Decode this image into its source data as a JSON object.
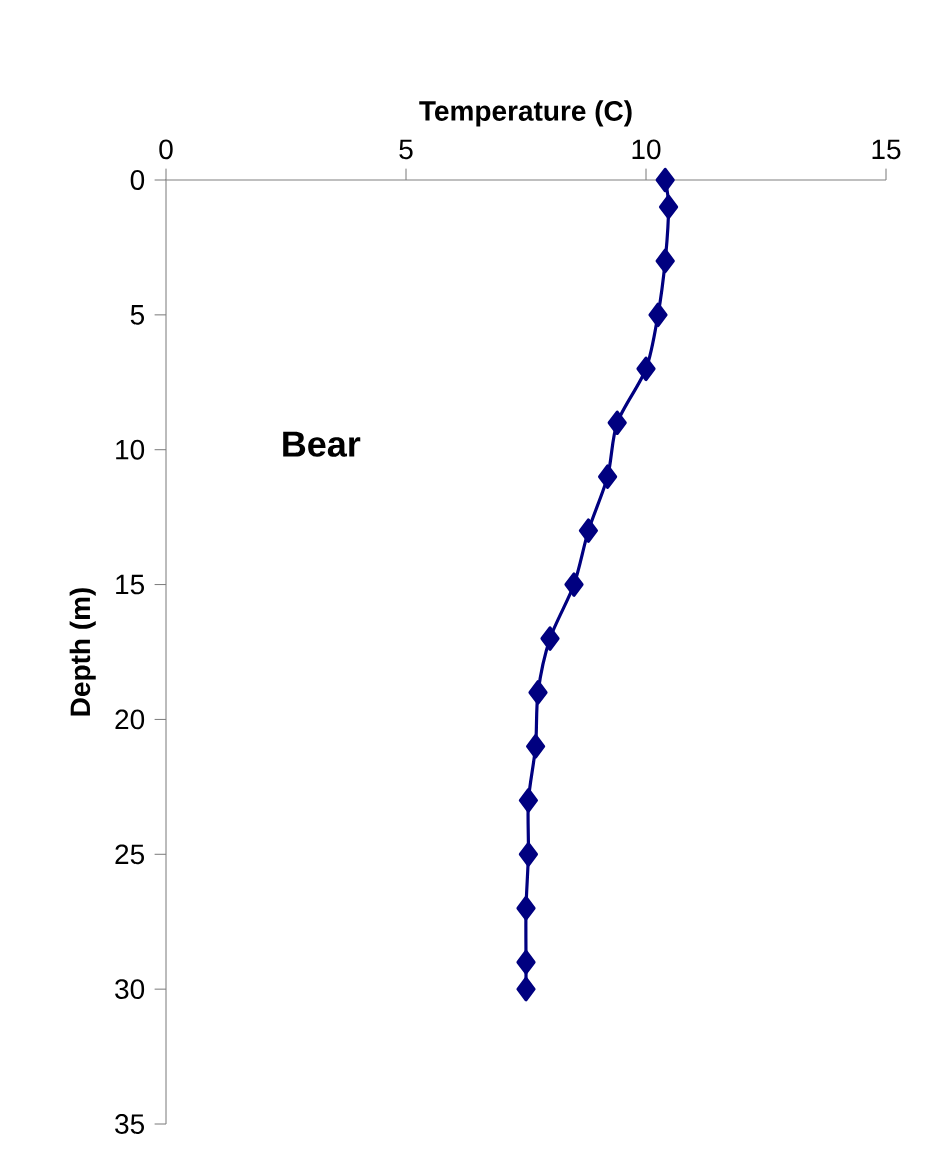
{
  "chart_data": {
    "type": "line",
    "xlabel": "Temperature (C)",
    "ylabel": "Depth (m)",
    "annotations": [
      "Bear"
    ],
    "series": [
      {
        "color": "#000080",
        "x": [
          10.4,
          10.47,
          10.4,
          10.25,
          10.0,
          9.4,
          9.2,
          8.8,
          8.5,
          8.0,
          7.75,
          7.7,
          7.55,
          7.55,
          7.5,
          7.5,
          7.5
        ],
        "values": [
          0,
          1,
          3,
          5,
          7,
          9,
          11,
          13,
          15,
          17,
          19,
          21,
          23,
          25,
          27,
          29,
          30
        ]
      }
    ],
    "xlim": [
      0,
      15
    ],
    "xticks": [
      0,
      5,
      10,
      15
    ],
    "ylim": [
      35,
      0
    ],
    "yticks": [
      0,
      5,
      10,
      15,
      20,
      25,
      30,
      35
    ],
    "marker": "diamond",
    "line_style": "solid",
    "grid": false
  }
}
